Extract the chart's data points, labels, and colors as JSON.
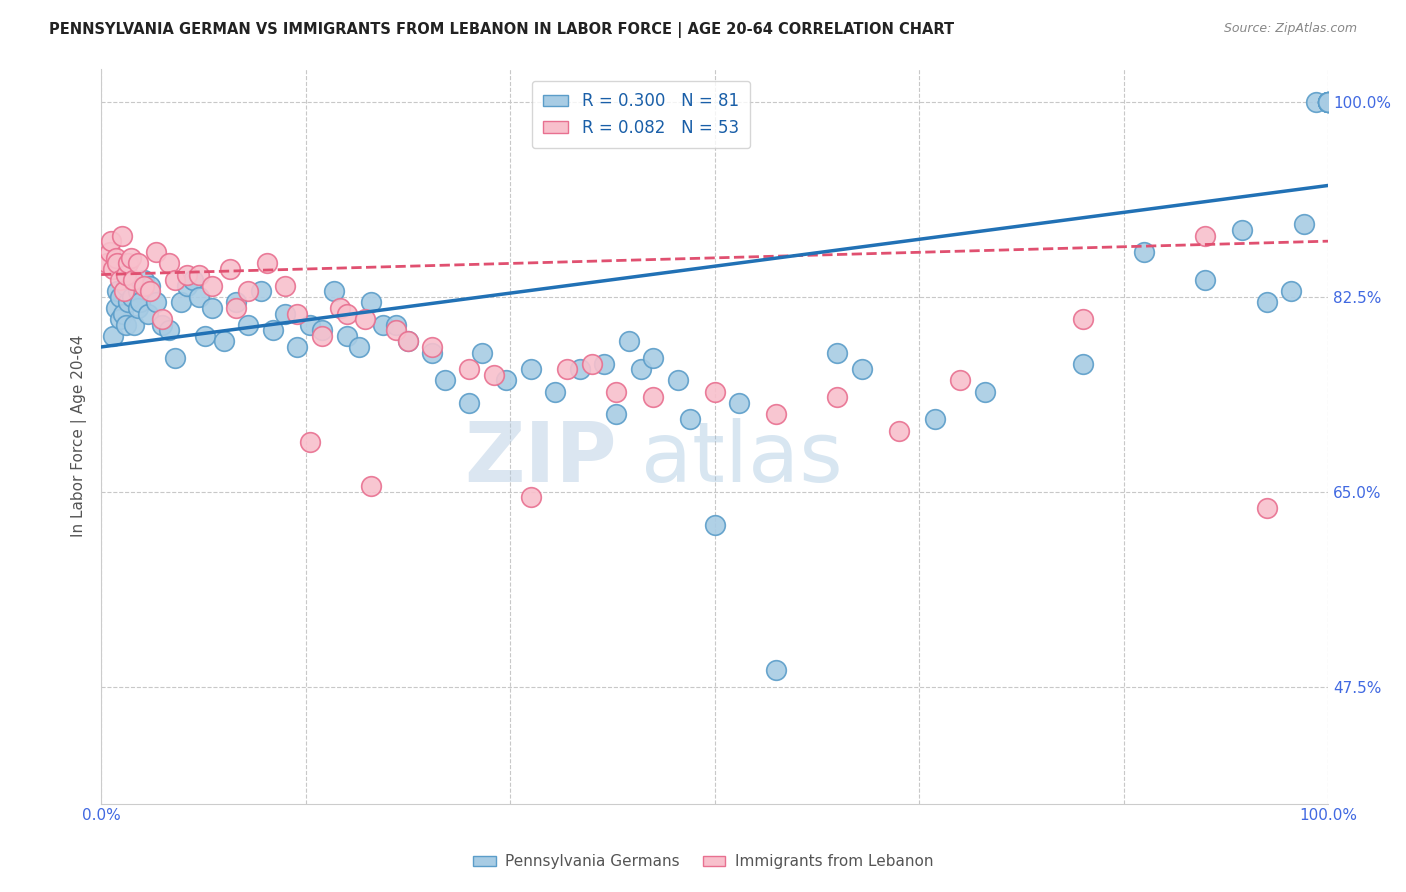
{
  "title": "PENNSYLVANIA GERMAN VS IMMIGRANTS FROM LEBANON IN LABOR FORCE | AGE 20-64 CORRELATION CHART",
  "source_text": "Source: ZipAtlas.com",
  "ylabel": "In Labor Force | Age 20-64",
  "ylabel_right_ticks": [
    100.0,
    82.5,
    65.0,
    47.5
  ],
  "ylabel_right_labels": [
    "100.0%",
    "82.5%",
    "65.0%",
    "47.5%"
  ],
  "xmin": 0.0,
  "xmax": 100.0,
  "ymin": 37.0,
  "ymax": 103.0,
  "watermark_left": "ZIP",
  "watermark_right": "atlas",
  "legend_blue_label": "R = 0.300   N = 81",
  "legend_pink_label": "R = 0.082   N = 53",
  "blue_color": "#a8cce4",
  "blue_edge_color": "#5b9dc9",
  "pink_color": "#f8c0cc",
  "pink_edge_color": "#e87090",
  "blue_line_color": "#2171b5",
  "pink_line_color": "#e05070",
  "title_color": "#222222",
  "right_label_color": "#4169e1",
  "grid_color": "#c8c8c8",
  "blue_scatter_x": [
    1.0,
    1.2,
    1.3,
    1.5,
    1.5,
    1.8,
    2.0,
    2.0,
    2.2,
    2.5,
    2.5,
    2.7,
    3.0,
    3.0,
    3.2,
    3.5,
    3.8,
    4.0,
    4.5,
    5.0,
    5.5,
    6.0,
    6.5,
    7.0,
    7.5,
    8.0,
    8.5,
    9.0,
    10.0,
    11.0,
    12.0,
    13.0,
    14.0,
    15.0,
    16.0,
    17.0,
    18.0,
    19.0,
    20.0,
    21.0,
    22.0,
    23.0,
    24.0,
    25.0,
    27.0,
    28.0,
    30.0,
    31.0,
    33.0,
    35.0,
    37.0,
    39.0,
    41.0,
    42.0,
    43.0,
    44.0,
    45.0,
    47.0,
    48.0,
    50.0,
    52.0,
    55.0,
    60.0,
    62.0,
    68.0,
    72.0,
    80.0,
    85.0,
    90.0,
    93.0,
    95.0,
    97.0,
    98.0,
    99.0,
    100.0,
    100.0,
    100.0,
    100.0,
    100.0,
    100.0,
    100.0
  ],
  "blue_scatter_y": [
    79.0,
    81.5,
    83.0,
    80.5,
    82.5,
    81.0,
    80.0,
    83.5,
    82.0,
    84.0,
    82.5,
    80.0,
    83.0,
    81.5,
    82.0,
    84.0,
    81.0,
    83.5,
    82.0,
    80.0,
    79.5,
    77.0,
    82.0,
    83.5,
    84.0,
    82.5,
    79.0,
    81.5,
    78.5,
    82.0,
    80.0,
    83.0,
    79.5,
    81.0,
    78.0,
    80.0,
    79.5,
    83.0,
    79.0,
    78.0,
    82.0,
    80.0,
    80.0,
    78.5,
    77.5,
    75.0,
    73.0,
    77.5,
    75.0,
    76.0,
    74.0,
    76.0,
    76.5,
    72.0,
    78.5,
    76.0,
    77.0,
    75.0,
    71.5,
    62.0,
    73.0,
    49.0,
    77.5,
    76.0,
    71.5,
    74.0,
    76.5,
    86.5,
    84.0,
    88.5,
    82.0,
    83.0,
    89.0,
    100.0,
    100.0,
    100.0,
    100.0,
    100.0,
    100.0,
    100.0,
    100.0
  ],
  "pink_scatter_x": [
    0.5,
    0.7,
    0.8,
    1.0,
    1.2,
    1.3,
    1.5,
    1.7,
    1.9,
    2.0,
    2.2,
    2.4,
    2.6,
    3.0,
    3.5,
    4.0,
    4.5,
    5.0,
    5.5,
    6.0,
    7.0,
    8.0,
    9.0,
    10.5,
    11.0,
    12.0,
    13.5,
    15.0,
    16.0,
    17.0,
    18.0,
    19.5,
    20.0,
    21.5,
    22.0,
    24.0,
    25.0,
    27.0,
    30.0,
    32.0,
    35.0,
    38.0,
    40.0,
    42.0,
    45.0,
    50.0,
    55.0,
    60.0,
    65.0,
    70.0,
    80.0,
    90.0,
    95.0
  ],
  "pink_scatter_y": [
    85.5,
    86.5,
    87.5,
    85.0,
    86.0,
    85.5,
    84.0,
    88.0,
    83.0,
    84.5,
    85.5,
    86.0,
    84.0,
    85.5,
    83.5,
    83.0,
    86.5,
    80.5,
    85.5,
    84.0,
    84.5,
    84.5,
    83.5,
    85.0,
    81.5,
    83.0,
    85.5,
    83.5,
    81.0,
    69.5,
    79.0,
    81.5,
    81.0,
    80.5,
    65.5,
    79.5,
    78.5,
    78.0,
    76.0,
    75.5,
    64.5,
    76.0,
    76.5,
    74.0,
    73.5,
    74.0,
    72.0,
    73.5,
    70.5,
    75.0,
    80.5,
    88.0,
    63.5
  ],
  "blue_line_start_y": 78.0,
  "blue_line_end_y": 92.5,
  "pink_line_start_y": 84.5,
  "pink_line_end_y": 87.5
}
